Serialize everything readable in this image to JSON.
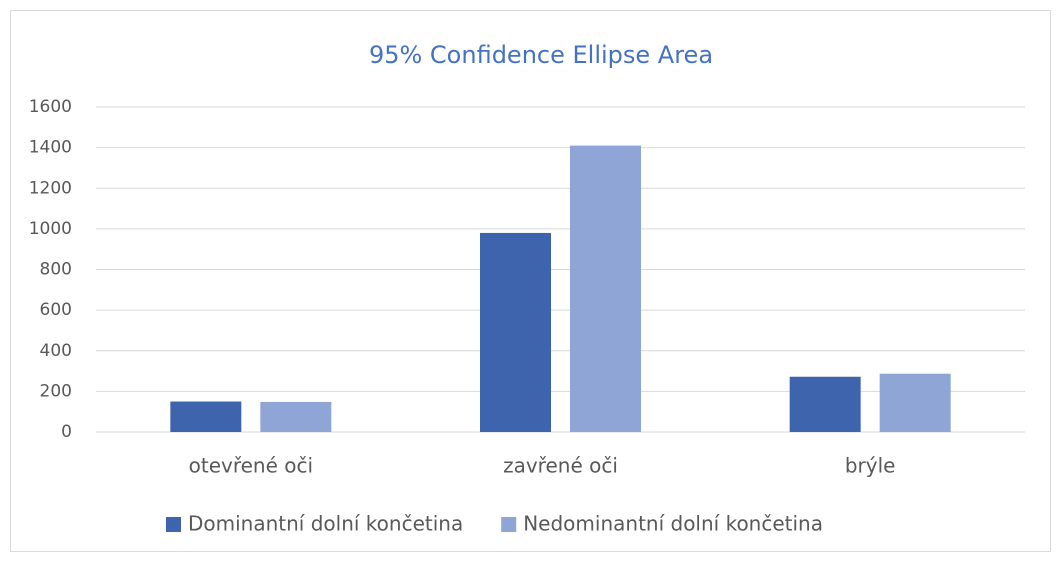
{
  "chart_data": {
    "type": "bar",
    "title": "95% Confidence Ellipse Area",
    "categories": [
      "otevřené oči",
      "zavřené oči",
      "brýle"
    ],
    "series": [
      {
        "name": "Dominantní dolní končetina",
        "color": "#3e64ad",
        "values": [
          150,
          980,
          272
        ]
      },
      {
        "name": "Nedominantní dolní končetina",
        "color": "#8fa5d6",
        "values": [
          148,
          1410,
          287
        ]
      }
    ],
    "ylim": [
      0,
      1600
    ],
    "yticks": [
      0,
      200,
      400,
      600,
      800,
      1000,
      1200,
      1400,
      1600
    ],
    "grid": true,
    "legend": "bottom"
  }
}
